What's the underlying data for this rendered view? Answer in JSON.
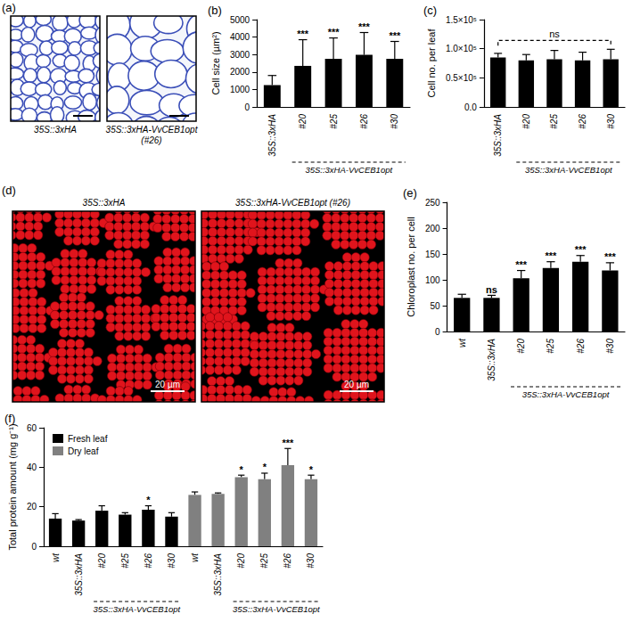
{
  "chart_data": [
    {
      "title": "(b)",
      "type": "bar",
      "y_label": "Cell size (µm²)",
      "categories": [
        "35S::3xHA",
        "#20",
        "#25",
        "#26",
        "#30"
      ],
      "values": [
        1250,
        2350,
        2750,
        2980,
        2750
      ],
      "errors": [
        550,
        1500,
        1200,
        1280,
        1000
      ],
      "significance": [
        null,
        "***",
        "***",
        "***",
        "***"
      ],
      "color": "#000000",
      "ylim": [
        0,
        5000
      ],
      "yticks": [
        0,
        1000,
        2000,
        3000,
        4000,
        5000
      ],
      "grid": false,
      "group_spans": [
        {
          "label": "35S::3xHA-VvCEB1opt",
          "from": 1,
          "to": 4
        }
      ]
    },
    {
      "title": "(c)",
      "type": "bar",
      "y_label": "Cell no. per leaf",
      "categories": [
        "35S::3xHA",
        "#20",
        "#25",
        "#26",
        "#30"
      ],
      "values": [
        85000,
        80000,
        82000,
        80000,
        82000
      ],
      "errors": [
        7000,
        10000,
        15000,
        14000,
        17000
      ],
      "significance": [
        null,
        null,
        null,
        null,
        null
      ],
      "color": "#000000",
      "ylim": [
        0,
        150000
      ],
      "yticks": [
        {
          "value": 0,
          "label": "0.0"
        },
        {
          "value": 50000,
          "label": "0.5×10⁵"
        },
        {
          "value": 100000,
          "label": "1.0×10⁵"
        },
        {
          "value": 150000,
          "label": "1.5×10⁵"
        }
      ],
      "grid": false,
      "bracket": {
        "label": "ns",
        "from": 0,
        "to": 4
      },
      "group_spans": [
        {
          "label": "35S::3xHA-VvCEB1opt",
          "from": 1,
          "to": 4
        }
      ]
    },
    {
      "title": "(e)",
      "type": "bar",
      "y_label": "Chloroplast no. per cell",
      "categories": [
        "wt",
        "35S::3xHA",
        "#20",
        "#25",
        "#26",
        "#30"
      ],
      "values": [
        65,
        65,
        103,
        123,
        135,
        118
      ],
      "errors": [
        7,
        5,
        15,
        12,
        12,
        15
      ],
      "significance": [
        null,
        "ns",
        "***",
        "***",
        "***",
        "***"
      ],
      "color": "#000000",
      "ylim": [
        0,
        250
      ],
      "yticks": [
        0,
        50,
        100,
        150,
        200,
        250
      ],
      "grid": false,
      "group_spans": [
        {
          "label": "35S::3xHA-VvCEB1opt",
          "from": 2,
          "to": 5
        }
      ]
    },
    {
      "title": "(f)",
      "type": "bar",
      "y_label": "Total protein amount (mg g⁻¹)",
      "categories": [
        "wt",
        "35S::3xHA",
        "#20",
        "#25",
        "#26",
        "#30",
        "wt",
        "35S::3xHA",
        "#20",
        "#25",
        "#26",
        "#30"
      ],
      "series": [
        {
          "name": "Fresh leaf",
          "color": "#000000",
          "values": [
            14,
            13,
            18,
            16,
            18.5,
            15,
            null,
            null,
            null,
            null,
            null,
            null
          ],
          "errors": [
            2.5,
            0.5,
            2.5,
            1,
            2,
            2,
            null,
            null,
            null,
            null,
            null,
            null
          ],
          "significance": [
            null,
            null,
            null,
            null,
            "*",
            null,
            null,
            null,
            null,
            null,
            null,
            null
          ]
        },
        {
          "name": "Dry leaf",
          "color": "#808080",
          "values": [
            null,
            null,
            null,
            null,
            null,
            null,
            26,
            26.5,
            35,
            34,
            41,
            34
          ],
          "errors": [
            null,
            null,
            null,
            null,
            null,
            null,
            1.5,
            0.5,
            1,
            3,
            8.5,
            2
          ],
          "significance": [
            null,
            null,
            null,
            null,
            null,
            null,
            null,
            null,
            "*",
            "*",
            "***",
            "*"
          ]
        }
      ],
      "ylim": [
        0,
        60
      ],
      "yticks": [
        0,
        20,
        40,
        60
      ],
      "grid": false,
      "legend": "upper left",
      "group_spans": [
        {
          "label": "35S::3xHA-VvCEB1opt",
          "from": 2,
          "to": 5
        },
        {
          "label": "35S::3xHA-VvCEB1opt",
          "from": 8,
          "to": 11
        }
      ]
    }
  ],
  "images": [
    {
      "title": "(a)",
      "kind": "section",
      "panels": [
        {
          "label": "35S::3xHA"
        },
        {
          "label": "35S::3xHA-VvCEB1opt (#26)"
        }
      ]
    },
    {
      "title": "(d)",
      "kind": "chloroplast",
      "panels": [
        {
          "label": "35S::3xHA",
          "scale_bar": "20 µm"
        },
        {
          "label": "35S::3xHA-VvCEB1opt (#26)",
          "scale_bar": "20 µm"
        }
      ]
    }
  ]
}
